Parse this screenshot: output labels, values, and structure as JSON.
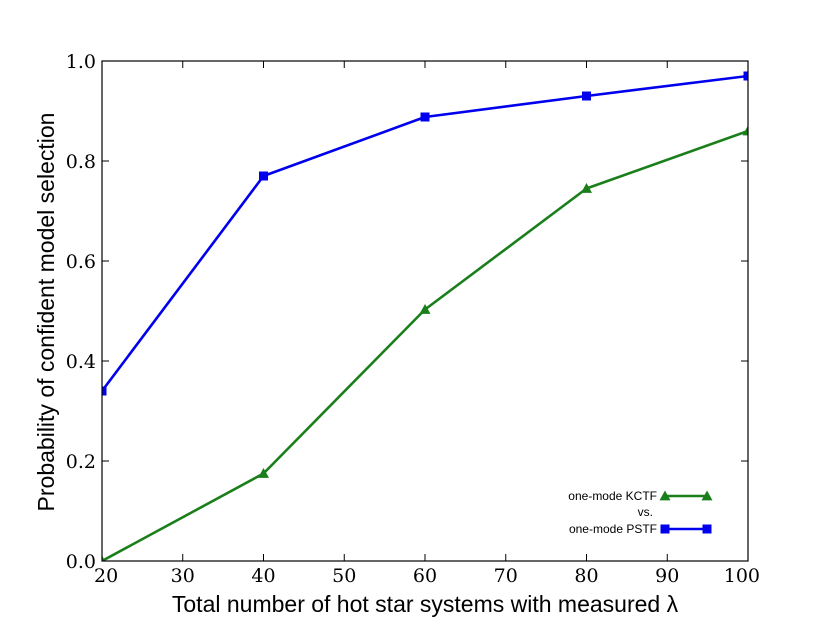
{
  "chart_data": {
    "type": "line",
    "xlabel": "Total number of hot star systems with measured λ",
    "ylabel": "Probability of confident model selection",
    "xlim": [
      20,
      100
    ],
    "ylim": [
      0.0,
      1.0
    ],
    "xticks": [
      "20",
      "30",
      "40",
      "50",
      "60",
      "70",
      "80",
      "90",
      "100"
    ],
    "yticks": [
      "0.0",
      "0.2",
      "0.4",
      "0.6",
      "0.8",
      "1.0"
    ],
    "grid": false,
    "legend_position": "bottom-right",
    "legend_separator": "vs.",
    "series": [
      {
        "name": "one-mode KCTF",
        "color": "#1a7f1a",
        "marker": "triangle",
        "x": [
          20,
          40,
          60,
          80,
          100
        ],
        "y": [
          0.0,
          0.175,
          0.503,
          0.745,
          0.86
        ]
      },
      {
        "name": "one-mode PSTF",
        "color": "#0000ee",
        "marker": "square",
        "x": [
          20,
          40,
          60,
          80,
          100
        ],
        "y": [
          0.34,
          0.77,
          0.888,
          0.93,
          0.97
        ]
      }
    ]
  }
}
